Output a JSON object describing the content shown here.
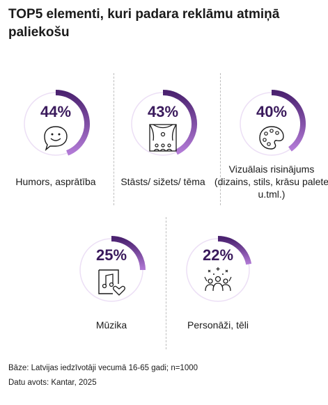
{
  "title": "TOP5 elementi, kuri padara reklāmu atmiņā paliekošu",
  "chart_data": {
    "type": "donut-progress",
    "title": "TOP5 elementi, kuri padara reklāmu atmiņā paliekošu",
    "categories": [
      "Humors, asprātība",
      "Stāsts/ sižets/ tēma",
      "Vizuālais risinājums (dizains, stils, krāsu palete u.tml.)",
      "Mūzika",
      "Personāži, tēli"
    ],
    "values": [
      44,
      43,
      40,
      25,
      22
    ],
    "unit": "%"
  },
  "items": [
    {
      "pct": "44%",
      "value": 44,
      "label": "Humors, asprātība",
      "icon": "speech-bubble-smile-icon"
    },
    {
      "pct": "43%",
      "value": 43,
      "label": "Stāsts/ sižets/ tēma",
      "icon": "theater-stage-icon"
    },
    {
      "pct": "40%",
      "value": 40,
      "label": "Vizuālais risinājums (dizains, stils, krāsu palete u.tml.)",
      "icon": "palette-icon"
    },
    {
      "pct": "25%",
      "value": 25,
      "label": "Mūzika",
      "icon": "music-note-heart-icon"
    },
    {
      "pct": "22%",
      "value": 22,
      "label": "Personāži, tēli",
      "icon": "crowd-celebration-icon"
    }
  ],
  "colors": {
    "ring_track": "#ecdff5",
    "ring_start": "#4b2270",
    "ring_end": "#b27ad6",
    "pct_text": "#3a1a5c"
  },
  "footer": {
    "base": "Bāze: Latvijas iedzīvotāji vecumā 16-65 gadi; n=1000",
    "source": "Datu avots: Kantar, 2025"
  }
}
